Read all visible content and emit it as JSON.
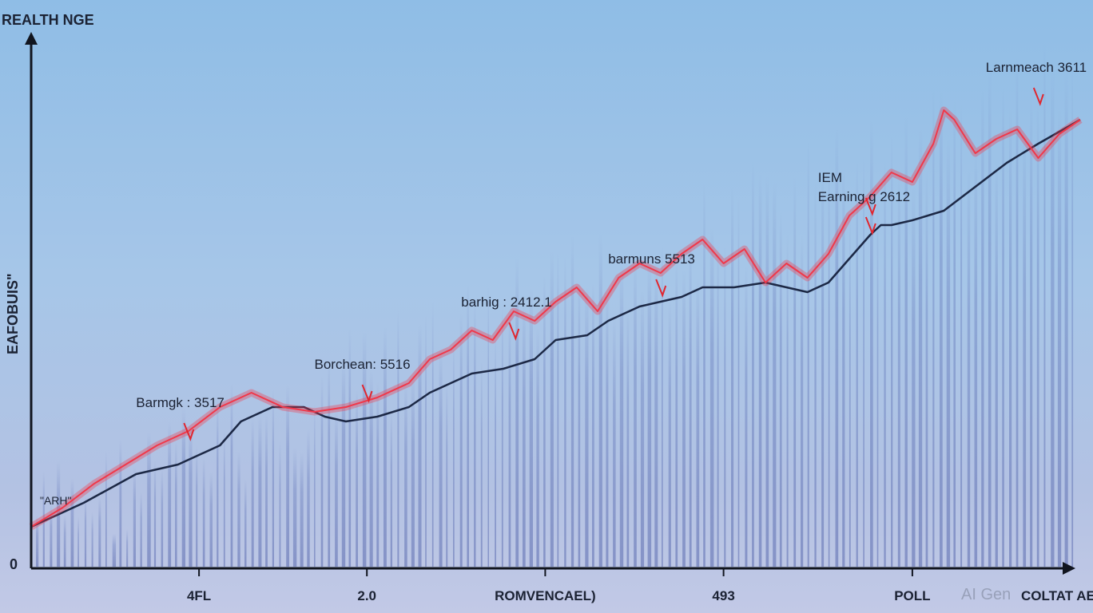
{
  "chart_data": {
    "type": "line",
    "title": "",
    "y_axis_title": "REALTH NGE",
    "y_side_label": "EAFOBUIS\"",
    "y_zero_label": "0",
    "small_label": "\"ARH\"",
    "x_axis_title": "COLTAT AE",
    "x_tick_labels": [
      "4FL",
      "2.0",
      "ROMVENCAEL)",
      "493",
      "POLL"
    ],
    "x_tick_positions": [
      0.16,
      0.32,
      0.49,
      0.66,
      0.84
    ],
    "xlim": [
      0,
      1
    ],
    "ylim": [
      0,
      1
    ],
    "grid": false,
    "series": [
      {
        "color": "#1c2845",
        "x": [
          0,
          0.05,
          0.1,
          0.14,
          0.18,
          0.2,
          0.23,
          0.26,
          0.28,
          0.3,
          0.33,
          0.36,
          0.38,
          0.42,
          0.45,
          0.48,
          0.5,
          0.53,
          0.55,
          0.58,
          0.6,
          0.62,
          0.64,
          0.67,
          0.7,
          0.72,
          0.74,
          0.76,
          0.78,
          0.8,
          0.81,
          0.82,
          0.84,
          0.87,
          0.9,
          0.93,
          0.96,
          1.0
        ],
        "y": [
          0.05,
          0.1,
          0.16,
          0.18,
          0.22,
          0.27,
          0.3,
          0.3,
          0.28,
          0.27,
          0.28,
          0.3,
          0.33,
          0.37,
          0.38,
          0.4,
          0.44,
          0.45,
          0.48,
          0.51,
          0.52,
          0.53,
          0.55,
          0.55,
          0.56,
          0.55,
          0.54,
          0.56,
          0.61,
          0.66,
          0.68,
          0.68,
          0.69,
          0.71,
          0.76,
          0.81,
          0.85,
          0.9
        ]
      },
      {
        "color": "#f0384a",
        "x": [
          0,
          0.03,
          0.06,
          0.09,
          0.12,
          0.15,
          0.18,
          0.21,
          0.24,
          0.27,
          0.3,
          0.33,
          0.36,
          0.38,
          0.4,
          0.42,
          0.44,
          0.46,
          0.48,
          0.5,
          0.52,
          0.54,
          0.56,
          0.58,
          0.6,
          0.62,
          0.64,
          0.66,
          0.68,
          0.7,
          0.72,
          0.74,
          0.76,
          0.78,
          0.8,
          0.82,
          0.84,
          0.86,
          0.87,
          0.88,
          0.9,
          0.92,
          0.94,
          0.96,
          0.98,
          1.0
        ],
        "y": [
          0.05,
          0.09,
          0.14,
          0.18,
          0.22,
          0.25,
          0.3,
          0.33,
          0.3,
          0.29,
          0.3,
          0.32,
          0.35,
          0.4,
          0.42,
          0.46,
          0.44,
          0.5,
          0.48,
          0.52,
          0.55,
          0.5,
          0.57,
          0.6,
          0.58,
          0.62,
          0.65,
          0.6,
          0.63,
          0.56,
          0.6,
          0.57,
          0.62,
          0.7,
          0.74,
          0.79,
          0.77,
          0.85,
          0.92,
          0.9,
          0.83,
          0.86,
          0.88,
          0.82,
          0.87,
          0.9
        ]
      }
    ],
    "annotations": [
      {
        "text": "Barmgk : 3517",
        "x": 0.1,
        "y": 0.3
      },
      {
        "text": "Borchean: 5516",
        "x": 0.27,
        "y": 0.38
      },
      {
        "text": "barhig : 2412.1",
        "x": 0.41,
        "y": 0.51
      },
      {
        "text": "barmuns 5513",
        "x": 0.55,
        "y": 0.6
      },
      {
        "text": "IEM",
        "x": 0.75,
        "y": 0.77
      },
      {
        "text": "Earning g 2612",
        "x": 0.75,
        "y": 0.73
      },
      {
        "text": "Larnmeach 3611",
        "x": 0.91,
        "y": 1.0
      }
    ],
    "watermark": "AI Gen"
  }
}
